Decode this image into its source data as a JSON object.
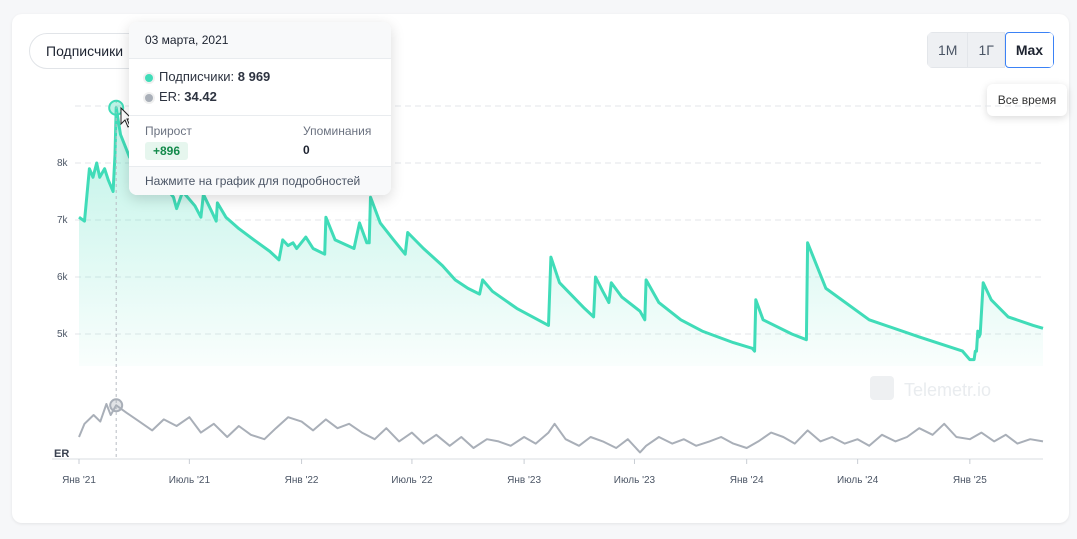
{
  "metric_select": {
    "label": "Подписчики"
  },
  "range_buttons": [
    {
      "label": "1M",
      "active": false
    },
    {
      "label": "1Г",
      "active": false
    },
    {
      "label": "Max",
      "active": true
    }
  ],
  "range_tooltip": "Все время",
  "watermark": "Telemetr.io",
  "tooltip": {
    "date": "03 марта, 2021",
    "subscribers_label": "Подписчики:",
    "subscribers_value": "8 969",
    "er_label": "ER:",
    "er_value": "34.42",
    "growth_label": "Прирост",
    "growth_value": "+896",
    "mentions_label": "Упоминания",
    "mentions_value": "0",
    "footer": "Нажмите на график для подробностей"
  },
  "colors": {
    "subscribers": "#40dcb8",
    "er": "#a9afb8",
    "accent": "#3b82f6",
    "growth": "#138a4b"
  },
  "chart_data": [
    {
      "type": "area",
      "series": [
        {
          "name": "Подписчики",
          "points": [
            [
              "2021-01-01",
              7050
            ],
            [
              "2021-01-10",
              6980
            ],
            [
              "2021-01-18",
              7900
            ],
            [
              "2021-01-24",
              7750
            ],
            [
              "2021-01-30",
              8000
            ],
            [
              "2021-02-04",
              7750
            ],
            [
              "2021-02-12",
              7900
            ],
            [
              "2021-02-18",
              7700
            ],
            [
              "2021-02-26",
              7500
            ],
            [
              "2021-03-01",
              8150
            ],
            [
              "2021-03-03",
              8969
            ],
            [
              "2021-03-10",
              8500
            ],
            [
              "2021-03-25",
              8100
            ],
            [
              "2021-04-15",
              7900
            ],
            [
              "2021-05-10",
              7700
            ],
            [
              "2021-05-25",
              7550
            ],
            [
              "2021-06-05",
              7400
            ],
            [
              "2021-06-10",
              7200
            ],
            [
              "2021-06-20",
              7500
            ],
            [
              "2021-07-10",
              7250
            ],
            [
              "2021-07-20",
              7050
            ],
            [
              "2021-07-24",
              7450
            ],
            [
              "2021-08-08",
              7120
            ],
            [
              "2021-08-14",
              6980
            ],
            [
              "2021-08-16",
              7300
            ],
            [
              "2021-08-30",
              7050
            ],
            [
              "2021-09-20",
              6850
            ],
            [
              "2021-10-15",
              6650
            ],
            [
              "2021-11-10",
              6450
            ],
            [
              "2021-11-25",
              6300
            ],
            [
              "2021-12-01",
              6650
            ],
            [
              "2021-12-10",
              6550
            ],
            [
              "2021-12-18",
              6600
            ],
            [
              "2021-12-24",
              6500
            ],
            [
              "2022-01-08",
              6700
            ],
            [
              "2022-01-20",
              6500
            ],
            [
              "2022-02-08",
              6400
            ],
            [
              "2022-02-10",
              7050
            ],
            [
              "2022-02-25",
              6650
            ],
            [
              "2022-03-28",
              6500
            ],
            [
              "2022-04-06",
              6950
            ],
            [
              "2022-04-18",
              6600
            ],
            [
              "2022-04-22",
              6600
            ],
            [
              "2022-04-24",
              7400
            ],
            [
              "2022-05-10",
              6950
            ],
            [
              "2022-06-01",
              6650
            ],
            [
              "2022-06-20",
              6400
            ],
            [
              "2022-06-24",
              6780
            ],
            [
              "2022-07-20",
              6500
            ],
            [
              "2022-08-20",
              6200
            ],
            [
              "2022-09-10",
              5950
            ],
            [
              "2022-10-01",
              5800
            ],
            [
              "2022-10-20",
              5700
            ],
            [
              "2022-10-25",
              5950
            ],
            [
              "2022-11-10",
              5750
            ],
            [
              "2022-12-20",
              5450
            ],
            [
              "2023-02-10",
              5150
            ],
            [
              "2023-02-14",
              6350
            ],
            [
              "2023-02-28",
              5900
            ],
            [
              "2023-04-10",
              5450
            ],
            [
              "2023-04-25",
              5300
            ],
            [
              "2023-04-28",
              6000
            ],
            [
              "2023-05-10",
              5750
            ],
            [
              "2023-05-20",
              5550
            ],
            [
              "2023-05-24",
              5900
            ],
            [
              "2023-06-10",
              5650
            ],
            [
              "2023-07-10",
              5400
            ],
            [
              "2023-07-18",
              5250
            ],
            [
              "2023-07-20",
              5950
            ],
            [
              "2023-08-10",
              5550
            ],
            [
              "2023-09-15",
              5250
            ],
            [
              "2023-10-20",
              5050
            ],
            [
              "2023-12-10",
              4850
            ],
            [
              "2024-01-10",
              4750
            ],
            [
              "2024-01-14",
              4700
            ],
            [
              "2024-01-16",
              5600
            ],
            [
              "2024-01-28",
              5250
            ],
            [
              "2024-03-15",
              5000
            ],
            [
              "2024-04-08",
              4900
            ],
            [
              "2024-04-10",
              6600
            ],
            [
              "2024-05-10",
              5800
            ],
            [
              "2024-07-20",
              5250
            ],
            [
              "2024-10-10",
              4950
            ],
            [
              "2024-12-20",
              4700
            ],
            [
              "2025-01-01",
              4550
            ],
            [
              "2025-01-08",
              4550
            ],
            [
              "2025-01-10",
              4700
            ],
            [
              "2025-01-12",
              4700
            ],
            [
              "2025-01-14",
              5050
            ],
            [
              "2025-01-16",
              4950
            ],
            [
              "2025-01-18",
              5000
            ],
            [
              "2025-01-23",
              5900
            ],
            [
              "2025-02-05",
              5600
            ],
            [
              "2025-03-05",
              5300
            ],
            [
              "2025-04-15",
              5150
            ],
            [
              "2025-05-01",
              5100
            ]
          ]
        }
      ],
      "x_ticks": [
        "Янв '21",
        "Июль '21",
        "Янв '22",
        "Июль '22",
        "Янв '23",
        "Июль '23",
        "Янв '24",
        "Июль '24",
        "Янв '25"
      ],
      "y_ticks": [
        "5k",
        "6k",
        "7k",
        "8k"
      ],
      "grid": true
    },
    {
      "type": "line",
      "series": [
        {
          "name": "ER",
          "points": [
            [
              "2021-01-01",
              20
            ],
            [
              "2021-01-10",
              26
            ],
            [
              "2021-01-25",
              30
            ],
            [
              "2021-02-05",
              27
            ],
            [
              "2021-02-15",
              35
            ],
            [
              "2021-02-22",
              30
            ],
            [
              "2021-03-03",
              34.42
            ],
            [
              "2021-03-20",
              31
            ],
            [
              "2021-04-10",
              27
            ],
            [
              "2021-05-01",
              23
            ],
            [
              "2021-05-20",
              28
            ],
            [
              "2021-06-10",
              25
            ],
            [
              "2021-07-01",
              29
            ],
            [
              "2021-07-20",
              22
            ],
            [
              "2021-08-10",
              26
            ],
            [
              "2021-09-01",
              20
            ],
            [
              "2021-09-20",
              25
            ],
            [
              "2021-10-10",
              21
            ],
            [
              "2021-11-01",
              19
            ],
            [
              "2021-11-20",
              24
            ],
            [
              "2021-12-10",
              29
            ],
            [
              "2022-01-01",
              27
            ],
            [
              "2022-01-20",
              23
            ],
            [
              "2022-02-10",
              28
            ],
            [
              "2022-03-01",
              24
            ],
            [
              "2022-03-20",
              26
            ],
            [
              "2022-04-10",
              22
            ],
            [
              "2022-05-01",
              19
            ],
            [
              "2022-05-20",
              24
            ],
            [
              "2022-06-10",
              18
            ],
            [
              "2022-07-01",
              22
            ],
            [
              "2022-07-20",
              17
            ],
            [
              "2022-08-10",
              21
            ],
            [
              "2022-09-01",
              16
            ],
            [
              "2022-09-20",
              20
            ],
            [
              "2022-10-10",
              15
            ],
            [
              "2022-11-01",
              19
            ],
            [
              "2022-11-20",
              18
            ],
            [
              "2022-12-10",
              16
            ],
            [
              "2023-01-01",
              20
            ],
            [
              "2023-01-20",
              17
            ],
            [
              "2023-02-10",
              22
            ],
            [
              "2023-02-20",
              26
            ],
            [
              "2023-03-10",
              19
            ],
            [
              "2023-04-01",
              16
            ],
            [
              "2023-04-20",
              20
            ],
            [
              "2023-05-10",
              18
            ],
            [
              "2023-06-01",
              15
            ],
            [
              "2023-06-20",
              19
            ],
            [
              "2023-07-10",
              13
            ],
            [
              "2023-07-20",
              16
            ],
            [
              "2023-08-10",
              20
            ],
            [
              "2023-09-01",
              17
            ],
            [
              "2023-09-20",
              19
            ],
            [
              "2023-10-10",
              16
            ],
            [
              "2023-11-01",
              18
            ],
            [
              "2023-11-20",
              20
            ],
            [
              "2023-12-10",
              17
            ],
            [
              "2024-01-01",
              15
            ],
            [
              "2024-01-20",
              18
            ],
            [
              "2024-02-10",
              22
            ],
            [
              "2024-03-01",
              20
            ],
            [
              "2024-03-20",
              17
            ],
            [
              "2024-04-10",
              23
            ],
            [
              "2024-05-01",
              18
            ],
            [
              "2024-05-20",
              20
            ],
            [
              "2024-06-10",
              17
            ],
            [
              "2024-07-01",
              19
            ],
            [
              "2024-07-20",
              16
            ],
            [
              "2024-08-10",
              21
            ],
            [
              "2024-09-01",
              18
            ],
            [
              "2024-09-20",
              20
            ],
            [
              "2024-10-10",
              24
            ],
            [
              "2024-11-01",
              21
            ],
            [
              "2024-11-20",
              26
            ],
            [
              "2024-12-10",
              20
            ],
            [
              "2025-01-01",
              19
            ],
            [
              "2025-01-20",
              22
            ],
            [
              "2025-02-10",
              18
            ],
            [
              "2025-03-01",
              21
            ],
            [
              "2025-03-20",
              17
            ],
            [
              "2025-04-10",
              19
            ],
            [
              "2025-05-01",
              18
            ]
          ]
        }
      ],
      "ylabel": "ER"
    }
  ]
}
